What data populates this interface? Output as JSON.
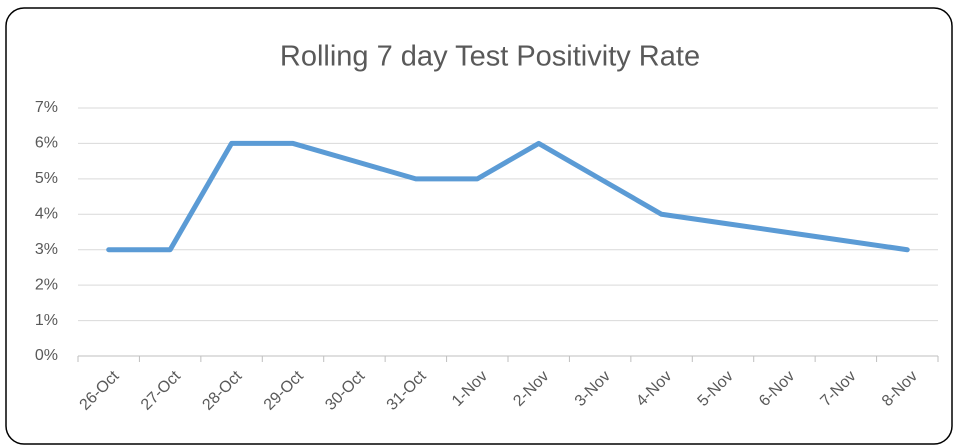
{
  "chart_data": {
    "type": "line",
    "title": "Rolling 7 day Test Positivity Rate",
    "categories": [
      "26-Oct",
      "27-Oct",
      "28-Oct",
      "29-Oct",
      "30-Oct",
      "31-Oct",
      "1-Nov",
      "2-Nov",
      "3-Nov",
      "4-Nov",
      "5-Nov",
      "6-Nov",
      "7-Nov",
      "8-Nov"
    ],
    "series": [
      {
        "name": "Test Positivity Rate",
        "color": "#5b9bd5",
        "values": [
          3,
          3,
          6,
          6,
          5.5,
          5,
          5,
          6,
          5,
          4,
          3.75,
          3.5,
          3.25,
          3
        ]
      }
    ],
    "ylim": [
      0,
      7
    ],
    "yticks": [
      {
        "value": 0,
        "label": "0%"
      },
      {
        "value": 1,
        "label": "1%"
      },
      {
        "value": 2,
        "label": "2%"
      },
      {
        "value": 3,
        "label": "3%"
      },
      {
        "value": 4,
        "label": "4%"
      },
      {
        "value": 5,
        "label": "5%"
      },
      {
        "value": 6,
        "label": "6%"
      },
      {
        "value": 7,
        "label": "7%"
      }
    ],
    "grid": true
  }
}
